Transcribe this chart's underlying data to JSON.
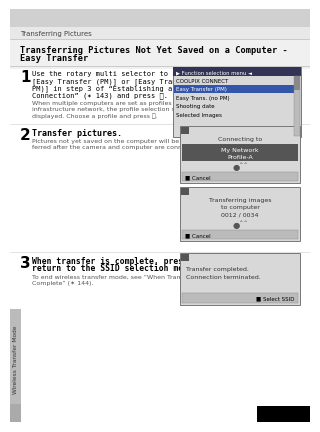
{
  "header_text": "Transferring Pictures",
  "title_line1": "Transferring Pictures Not Yet Saved on a Computer -",
  "title_line2": "Easy Transfer",
  "step1_lines": [
    "Use the rotary multi selector to choose",
    "[Easy Transfer (PM)] or [Easy Trans. (no",
    "PM)] in step 3 of “Establishing a Wireless",
    "Connection” (✶ 143) and press ⒪."
  ],
  "step1_note": [
    "When multiple computers are set as profiles for the",
    "infrastructure network, the profile selection screen is",
    "displayed. Choose a profile and press ⒪."
  ],
  "step2_title": "Transfer pictures.",
  "step2_note": [
    "Pictures not yet saved on the computer will be trans-",
    "ferred after the camera and computer are connected."
  ],
  "step3_lines": [
    "When transfer is complete, press ⒪ to",
    "return to the SSID selection menu."
  ],
  "step3_note": [
    "To end wireless transfer mode, see “When Transfer is",
    "Complete” (✶ 144)."
  ],
  "sidebar_text": "Wireless Transfer Mode",
  "box1_title": "▶ Function selection menu ◄",
  "box1_items": [
    "COOLPIX CONNECT",
    "Easy Transfer (PM)",
    "Easy Trans. (no PM)",
    "Shooting date",
    "Selected Images"
  ],
  "box2_title": "Connecting to",
  "box2_highlight": [
    "My Network",
    "Profile-A"
  ],
  "box3_title": "Transferring images",
  "box3_lines": [
    "to computer",
    "0012 / 0034"
  ],
  "box4_lines": [
    "Transfer completed.",
    "Connection terminated."
  ],
  "header_bg": "#d0d0d0",
  "page_bg": "#ffffff",
  "title_bg": "#e8e8e8",
  "box_bg": "#d8d8d8",
  "box_border": "#888888",
  "highlight_row": "#555577",
  "sidebar_bg": "#bbbbbb",
  "bottom_black": "#000000"
}
